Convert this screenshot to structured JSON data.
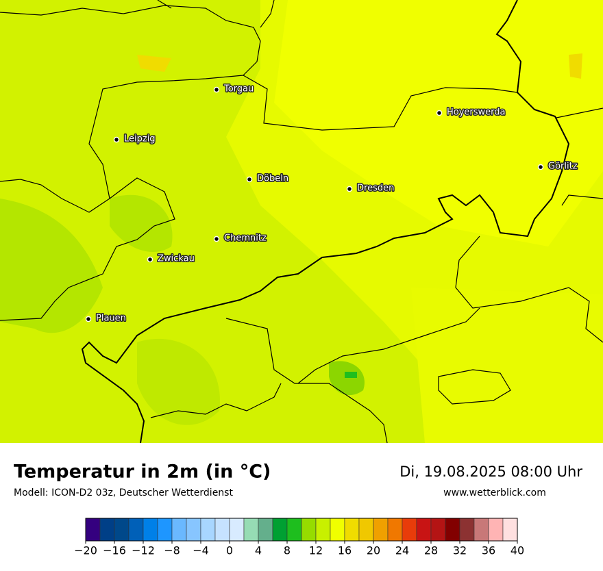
{
  "header": {
    "title": "Temperatur in 2m (in °C)",
    "subtitle": "Modell: ICON-D2 03z, Deutscher Wetterdienst",
    "datetime": "Di, 19.08.2025 08:00 Uhr",
    "website": "www.wetterblick.com"
  },
  "cities": [
    {
      "label": "Torgau"
    },
    {
      "label": "Leipzig"
    },
    {
      "label": "Döbeln"
    },
    {
      "label": "Dresden"
    },
    {
      "label": "Hoyerswerda"
    },
    {
      "label": "Görlitz"
    },
    {
      "label": "Chemnitz"
    },
    {
      "label": "Zwickau"
    },
    {
      "label": "Plauen"
    }
  ],
  "legend": {
    "range": [
      -20,
      40
    ],
    "colors": [
      "#34007f",
      "#003f87",
      "#00488a",
      "#0060b8",
      "#0080e8",
      "#1e96ff",
      "#6ab8ff",
      "#87c5ff",
      "#a8d6ff",
      "#c6e2ff",
      "#d8ebff",
      "#96dcb4",
      "#64af8c",
      "#00a032",
      "#1ebe1e",
      "#96dc00",
      "#c8f000",
      "#f0ff00",
      "#f0dc00",
      "#f0c800",
      "#f0a000",
      "#f07800",
      "#e83c0a",
      "#c81414",
      "#b41414",
      "#820000",
      "#8c3232",
      "#c87878",
      "#ffb4b4",
      "#ffe0e0"
    ],
    "ticks": [
      {
        "value": -20,
        "label": "−20"
      },
      {
        "value": -16,
        "label": "−16"
      },
      {
        "value": -12,
        "label": "−12"
      },
      {
        "value": -8,
        "label": "−8"
      },
      {
        "value": -4,
        "label": "−4"
      },
      0,
      4,
      8,
      12,
      16,
      20,
      24,
      28,
      32,
      36,
      40
    ]
  }
}
